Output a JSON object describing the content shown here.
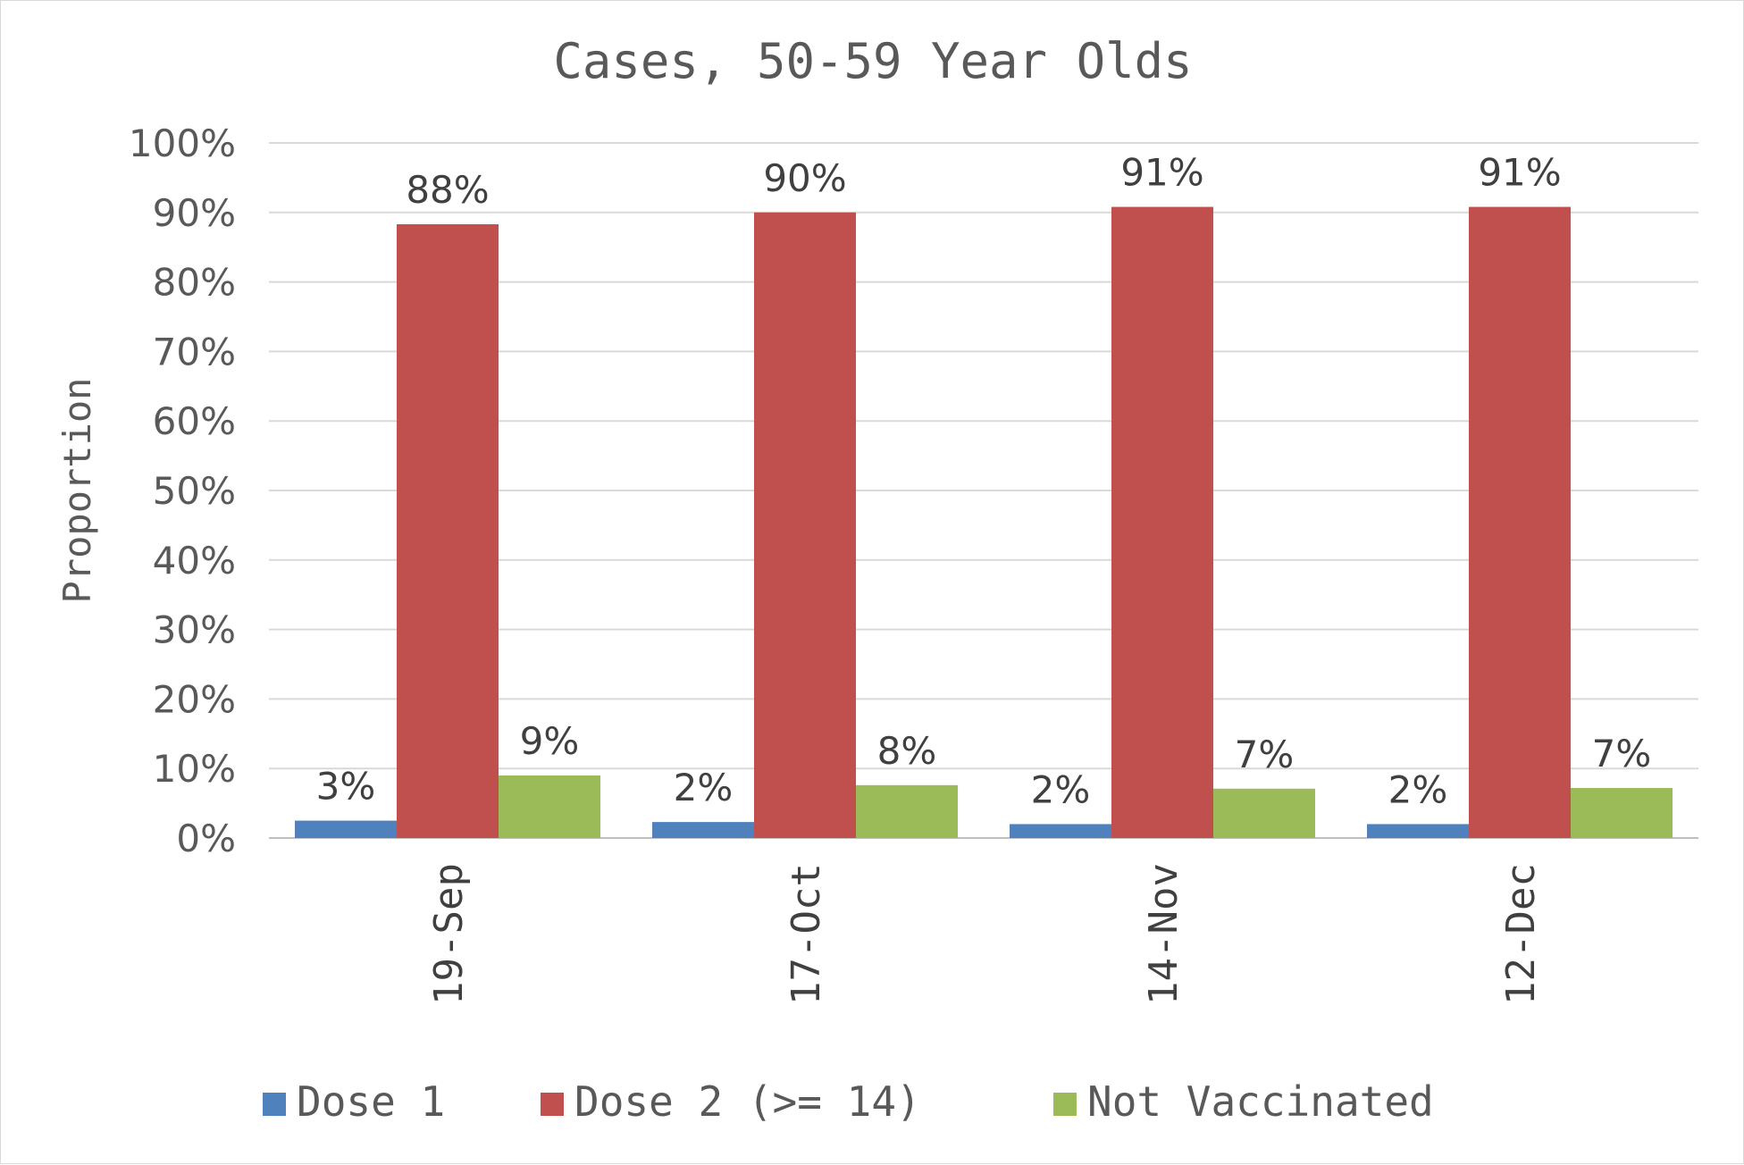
{
  "chart_data": {
    "type": "bar",
    "title": "Cases, 50-59 Year Olds",
    "xlabel": "",
    "ylabel": "Proportion",
    "ylim": [
      0,
      100
    ],
    "yticks": [
      0,
      10,
      20,
      30,
      40,
      50,
      60,
      70,
      80,
      90,
      100
    ],
    "ytick_labels": [
      "0%",
      "10%",
      "20%",
      "30%",
      "40%",
      "50%",
      "60%",
      "70%",
      "80%",
      "90%",
      "100%"
    ],
    "categories": [
      "19-Sep",
      "17-Oct",
      "14-Nov",
      "12-Dec"
    ],
    "series": [
      {
        "name": "Dose 1",
        "color": "#4f81bd",
        "values": [
          2.5,
          2.3,
          2.0,
          2.0
        ],
        "labels": [
          "3%",
          "2%",
          "2%",
          "2%"
        ]
      },
      {
        "name": "Dose 2 (>= 14)",
        "color": "#c0504d",
        "values": [
          88.3,
          90.0,
          90.8,
          90.8
        ],
        "labels": [
          "88%",
          "90%",
          "91%",
          "91%"
        ]
      },
      {
        "name": "Not Vaccinated",
        "color": "#9bbb59",
        "values": [
          9.0,
          7.6,
          7.1,
          7.2
        ],
        "labels": [
          "9%",
          "8%",
          "7%",
          "7%"
        ]
      }
    ],
    "grid": true,
    "legend_position": "bottom"
  }
}
